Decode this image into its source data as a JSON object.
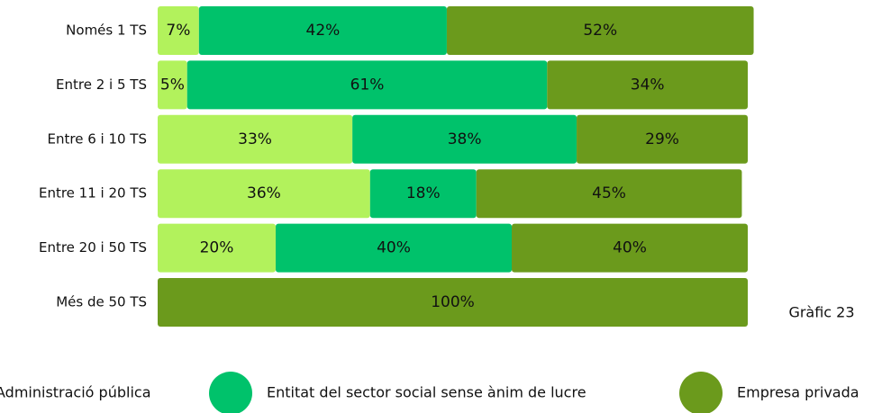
{
  "chart_data": {
    "type": "stacked_barh",
    "categories": [
      "Només 1 TS",
      "Entre 2 i 5 TS",
      "Entre 6 i 10 TS",
      "Entre 11 i 20 TS",
      "Entre 20 i 50 TS",
      "Més de 50 TS"
    ],
    "series": [
      {
        "name": "Administració pública",
        "color": "#b2f25c",
        "values": [
          7,
          5,
          33,
          36,
          20,
          null
        ],
        "value_labels": [
          "7%",
          "5%",
          "33%",
          "36%",
          "20%",
          null
        ]
      },
      {
        "name": "Entitat del sector social sense ànim de lucre",
        "color": "#00c26b",
        "values": [
          42,
          61,
          38,
          18,
          40,
          null
        ],
        "value_labels": [
          "42%",
          "61%",
          "38%",
          "18%",
          "40%",
          null
        ]
      },
      {
        "name": "Empresa privada",
        "color": "#6b9a1c",
        "values": [
          52,
          34,
          29,
          45,
          40,
          100
        ],
        "value_labels": [
          "52%",
          "34%",
          "29%",
          "45%",
          "40%",
          "100%"
        ]
      }
    ],
    "xlim": [
      0,
      100
    ],
    "annotation": "Gràfic 23"
  }
}
